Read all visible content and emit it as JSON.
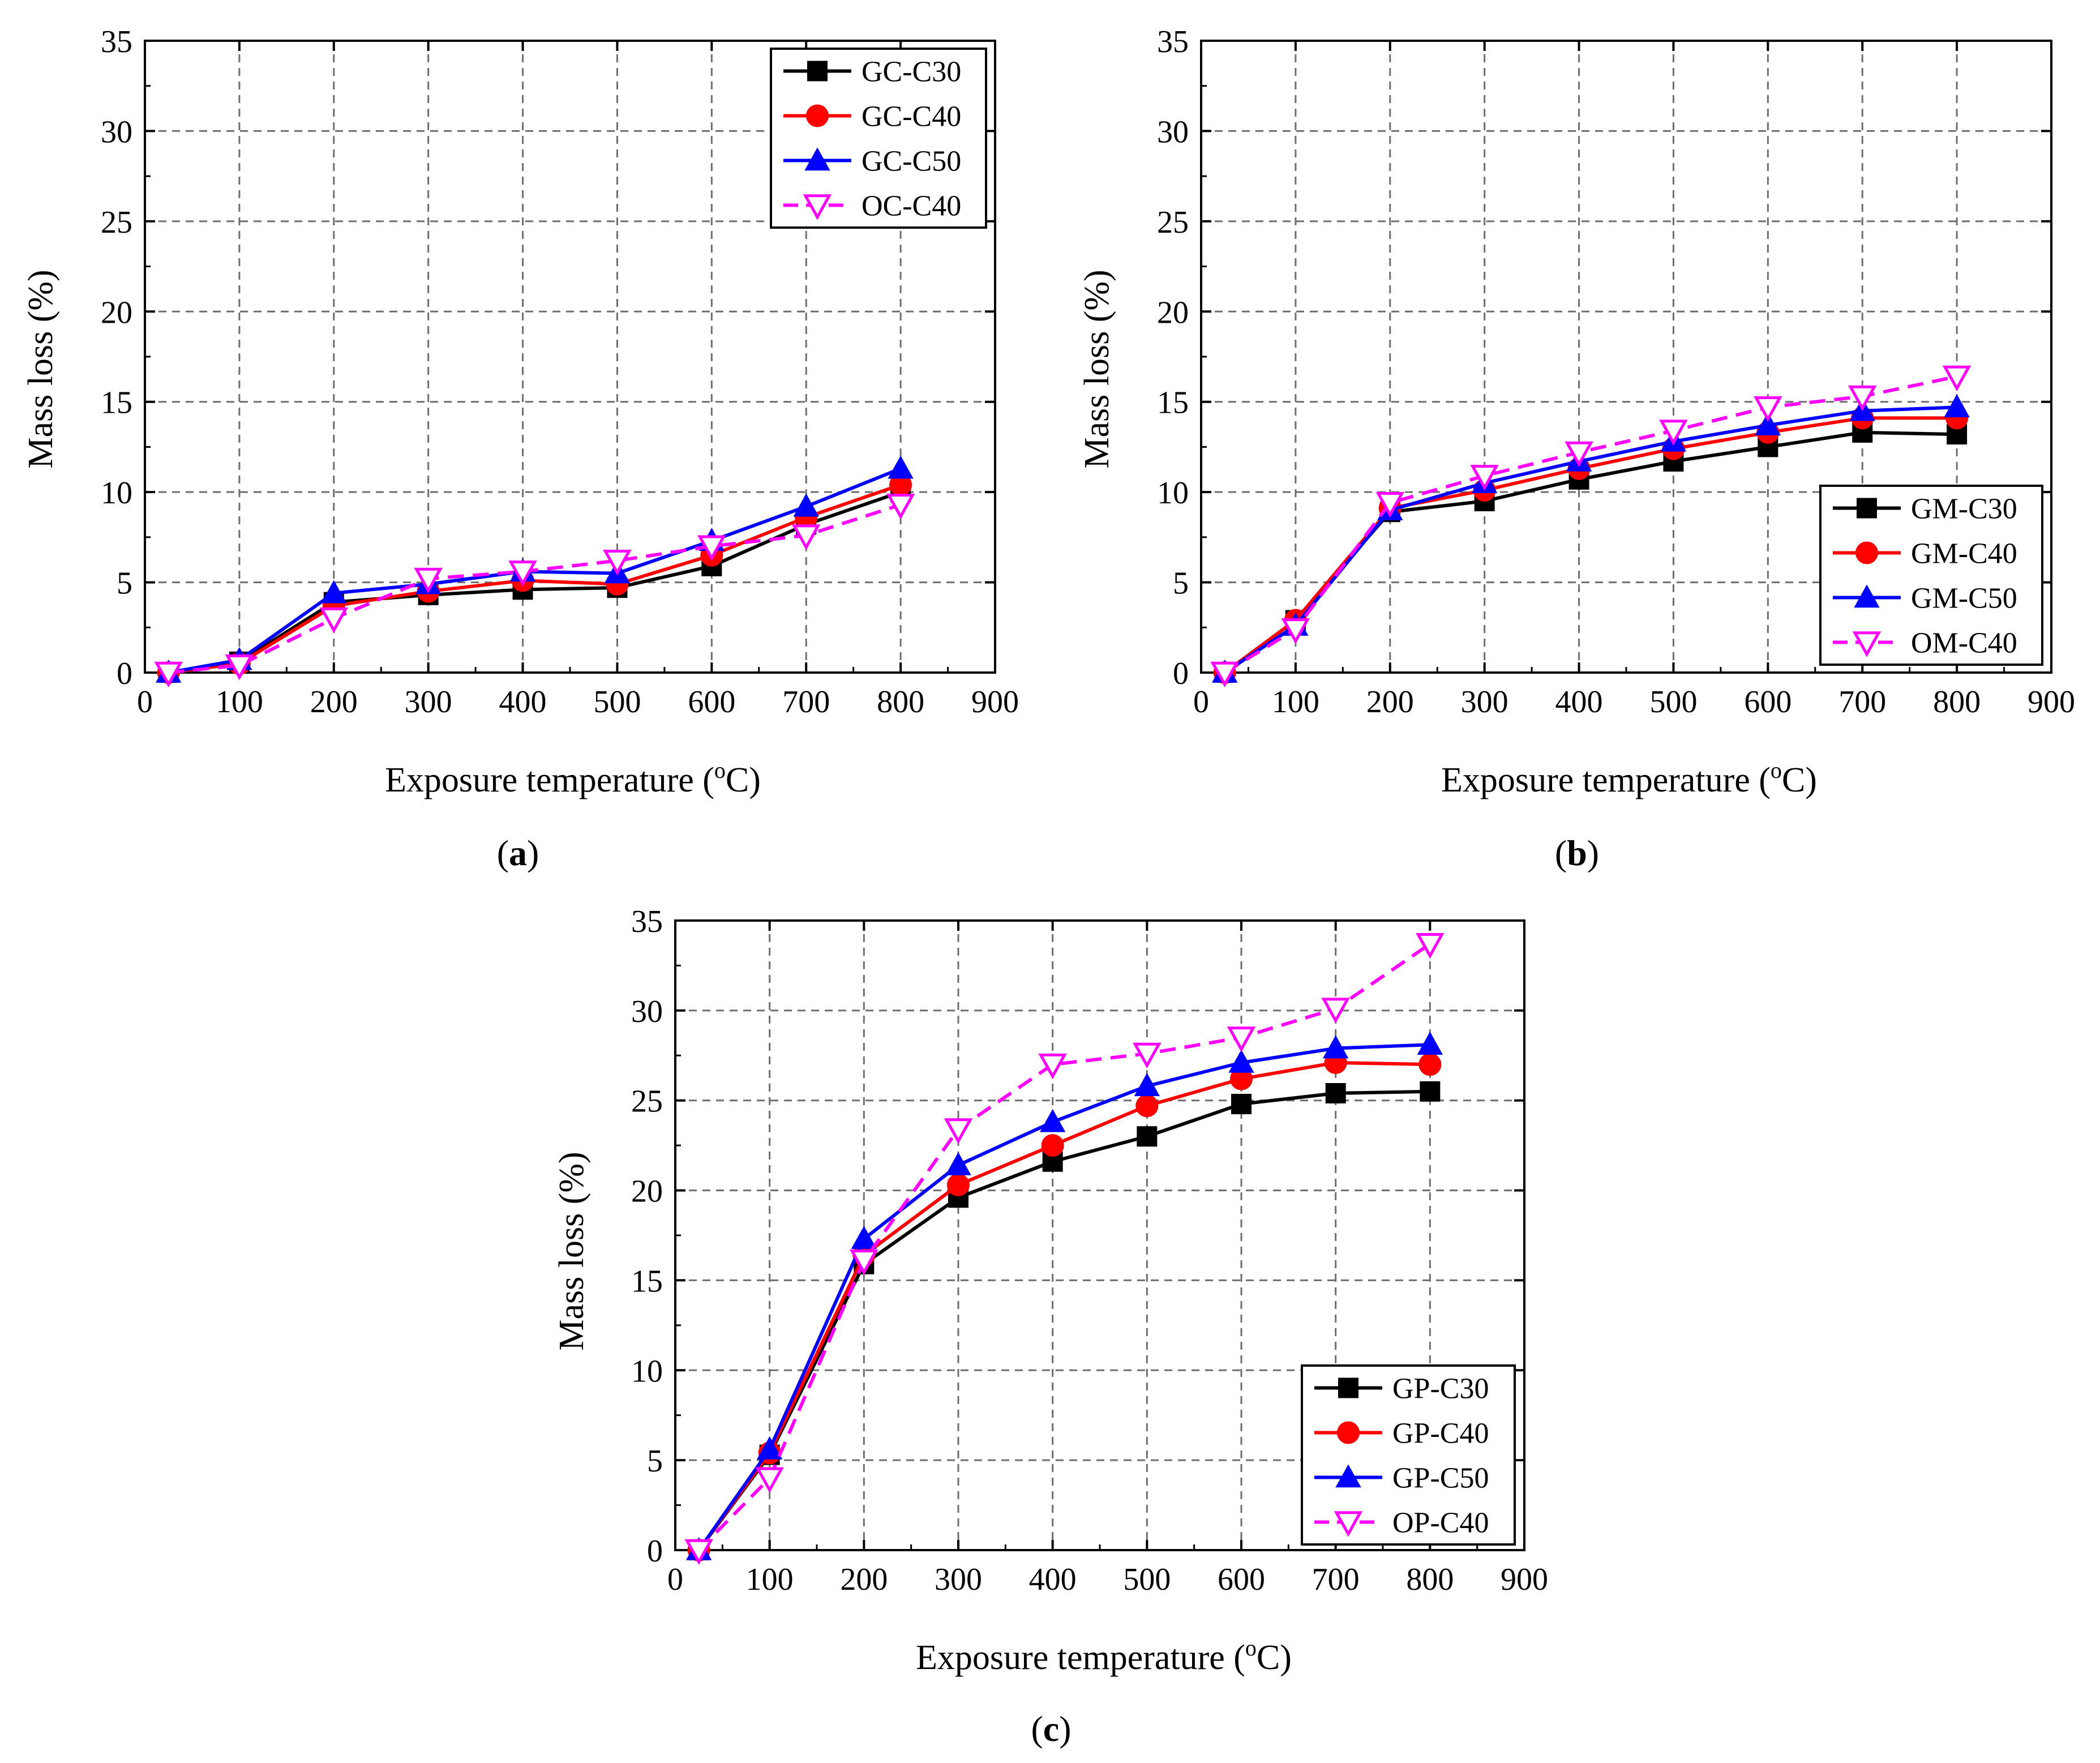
{
  "colors": {
    "black": "#000000",
    "red": "#ff0000",
    "blue": "#0000ff",
    "magenta": "#ff00ff"
  },
  "chart_data": [
    {
      "type": "line",
      "panel_label": {
        "open": "(",
        "letter": "a",
        "close": ")"
      },
      "xlabel": "Exposure temperature (",
      "xlabel_sup": "o",
      "xlabel_unit": "C)",
      "ylabel": "Mass loss (%)",
      "xlim": [
        0,
        900
      ],
      "ylim": [
        0,
        35
      ],
      "xticks": [
        "0",
        "100",
        "200",
        "300",
        "400",
        "500",
        "600",
        "700",
        "800",
        "900"
      ],
      "yticks": [
        "0",
        "5",
        "10",
        "15",
        "20",
        "25",
        "30",
        "35"
      ],
      "grid": true,
      "legend_position": "top-right",
      "x": [
        25,
        100,
        200,
        300,
        400,
        500,
        600,
        700,
        800
      ],
      "series": [
        {
          "name": "GC-C30",
          "color": "#000000",
          "marker": "square",
          "dash": false,
          "values": [
            0,
            0.6,
            3.9,
            4.3,
            4.6,
            4.7,
            5.9,
            8.2,
            10.0
          ]
        },
        {
          "name": "GC-C40",
          "color": "#ff0000",
          "marker": "circle",
          "dash": false,
          "values": [
            0,
            0.5,
            3.7,
            4.5,
            5.1,
            4.9,
            6.5,
            8.6,
            10.4
          ]
        },
        {
          "name": "GC-C50",
          "color": "#0000ff",
          "marker": "triangle",
          "dash": false,
          "values": [
            0,
            0.7,
            4.4,
            4.9,
            5.6,
            5.5,
            7.3,
            9.2,
            11.3
          ]
        },
        {
          "name": "OC-C40",
          "color": "#ff00ff",
          "marker": "triangle-down-open",
          "dash": true,
          "values": [
            0,
            0.4,
            3.0,
            5.2,
            5.6,
            6.2,
            7.0,
            7.6,
            9.3
          ]
        }
      ]
    },
    {
      "type": "line",
      "panel_label": {
        "open": "(",
        "letter": "b",
        "close": ")"
      },
      "xlabel": "Exposure temperature (",
      "xlabel_sup": "o",
      "xlabel_unit": "C)",
      "ylabel": "Mass loss (%)",
      "xlim": [
        0,
        900
      ],
      "ylim": [
        0,
        35
      ],
      "xticks": [
        "0",
        "100",
        "200",
        "300",
        "400",
        "500",
        "600",
        "700",
        "800",
        "900"
      ],
      "yticks": [
        "0",
        "5",
        "10",
        "15",
        "20",
        "25",
        "30",
        "35"
      ],
      "grid": true,
      "legend_position": "bottom-right",
      "x": [
        25,
        100,
        200,
        300,
        400,
        500,
        600,
        700,
        800
      ],
      "series": [
        {
          "name": "GM-C30",
          "color": "#000000",
          "marker": "square",
          "dash": false,
          "values": [
            0,
            2.9,
            8.9,
            9.5,
            10.7,
            11.7,
            12.5,
            13.3,
            13.2
          ]
        },
        {
          "name": "GM-C40",
          "color": "#ff0000",
          "marker": "circle",
          "dash": false,
          "values": [
            0,
            2.9,
            9.1,
            10.1,
            11.3,
            12.4,
            13.3,
            14.1,
            14.1
          ]
        },
        {
          "name": "GM-C50",
          "color": "#0000ff",
          "marker": "triangle",
          "dash": false,
          "values": [
            0,
            2.6,
            9.0,
            10.5,
            11.7,
            12.8,
            13.7,
            14.5,
            14.7
          ]
        },
        {
          "name": "OM-C40",
          "color": "#ff00ff",
          "marker": "triangle-down-open",
          "dash": true,
          "values": [
            0,
            2.4,
            9.4,
            10.9,
            12.2,
            13.4,
            14.7,
            15.3,
            16.4
          ]
        }
      ]
    },
    {
      "type": "line",
      "panel_label": {
        "open": "(",
        "letter": "c",
        "close": ")"
      },
      "xlabel": "Exposure temperature (",
      "xlabel_sup": "o",
      "xlabel_unit": "C)",
      "ylabel": "Mass loss (%)",
      "xlim": [
        0,
        900
      ],
      "ylim": [
        0,
        35
      ],
      "xticks": [
        "0",
        "100",
        "200",
        "300",
        "400",
        "500",
        "600",
        "700",
        "800",
        "900"
      ],
      "yticks": [
        "0",
        "5",
        "10",
        "15",
        "20",
        "25",
        "30",
        "35"
      ],
      "grid": true,
      "legend_position": "bottom-right",
      "x": [
        25,
        100,
        200,
        300,
        400,
        500,
        600,
        700,
        800
      ],
      "series": [
        {
          "name": "GP-C30",
          "color": "#000000",
          "marker": "square",
          "dash": false,
          "values": [
            0,
            5.3,
            15.9,
            19.6,
            21.6,
            23.0,
            24.8,
            25.4,
            25.5
          ]
        },
        {
          "name": "GP-C40",
          "color": "#ff0000",
          "marker": "circle",
          "dash": false,
          "values": [
            0,
            5.4,
            16.4,
            20.3,
            22.5,
            24.7,
            26.2,
            27.1,
            27.0
          ]
        },
        {
          "name": "GP-C50",
          "color": "#0000ff",
          "marker": "triangle",
          "dash": false,
          "values": [
            0,
            5.6,
            17.3,
            21.4,
            23.8,
            25.8,
            27.1,
            27.9,
            28.1
          ]
        },
        {
          "name": "OP-C40",
          "color": "#ff00ff",
          "marker": "triangle-down-open",
          "dash": true,
          "values": [
            0,
            4.0,
            16.1,
            23.4,
            27.0,
            27.6,
            28.5,
            30.1,
            33.7
          ]
        }
      ]
    }
  ]
}
